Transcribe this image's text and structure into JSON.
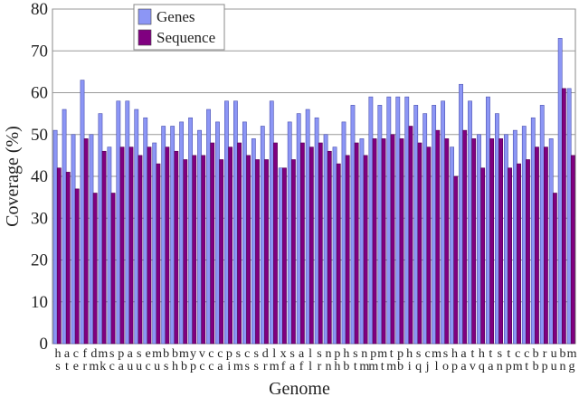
{
  "chart_data": {
    "type": "bar",
    "x_label": "Genome",
    "y_label": "Coverage (%)",
    "categories": [
      "hs",
      "at",
      "ce",
      "fr",
      "dm",
      "mk",
      "sc",
      "pa",
      "au",
      "su",
      "ec",
      "mu",
      "bs",
      "bh",
      "mb",
      "yp",
      "vc",
      "cc",
      "ca",
      "pi",
      "sm",
      "cs",
      "ss",
      "dr",
      "lm",
      "xf",
      "sa",
      "af",
      "ll",
      "sr",
      "nn",
      "ph",
      "hb",
      "st",
      "nm",
      "pm",
      "mt",
      "tm",
      "pb",
      "hi",
      "sq",
      "cj",
      "ml",
      "so",
      "hp",
      "aa",
      "tv",
      "hq",
      "ta",
      "sn",
      "tp",
      "cm",
      "ct",
      "bb",
      "rp",
      "uu",
      "bn",
      "mg"
    ],
    "series": [
      {
        "name": "Genes",
        "color": "#8c96f5",
        "values": [
          51,
          56,
          50,
          63,
          50,
          55,
          47,
          58,
          58,
          56,
          54,
          48,
          52,
          52,
          53,
          54,
          51,
          56,
          53,
          58,
          58,
          53,
          49,
          52,
          58,
          42,
          53,
          55,
          56,
          54,
          50,
          47,
          53,
          57,
          49,
          59,
          57,
          59,
          59,
          59,
          57,
          55,
          57,
          58,
          47,
          62,
          58,
          50,
          59,
          55,
          50,
          51,
          52,
          54,
          57,
          49,
          73,
          61
        ]
      },
      {
        "name": "Sequence",
        "color": "#800080",
        "values": [
          42,
          41,
          37,
          49,
          36,
          46,
          36,
          47,
          47,
          45,
          47,
          43,
          47,
          46,
          44,
          45,
          45,
          48,
          44,
          47,
          48,
          45,
          44,
          44,
          48,
          42,
          44,
          48,
          47,
          48,
          46,
          43,
          45,
          48,
          45,
          49,
          49,
          50,
          49,
          52,
          48,
          47,
          51,
          49,
          40,
          51,
          49,
          42,
          49,
          49,
          42,
          43,
          44,
          47,
          47,
          36,
          61,
          45
        ]
      }
    ],
    "ylim": [
      0,
      80
    ],
    "yticks": [
      0,
      10,
      20,
      30,
      40,
      50,
      60,
      70,
      80
    ],
    "grid": true,
    "legend": "top-left"
  }
}
